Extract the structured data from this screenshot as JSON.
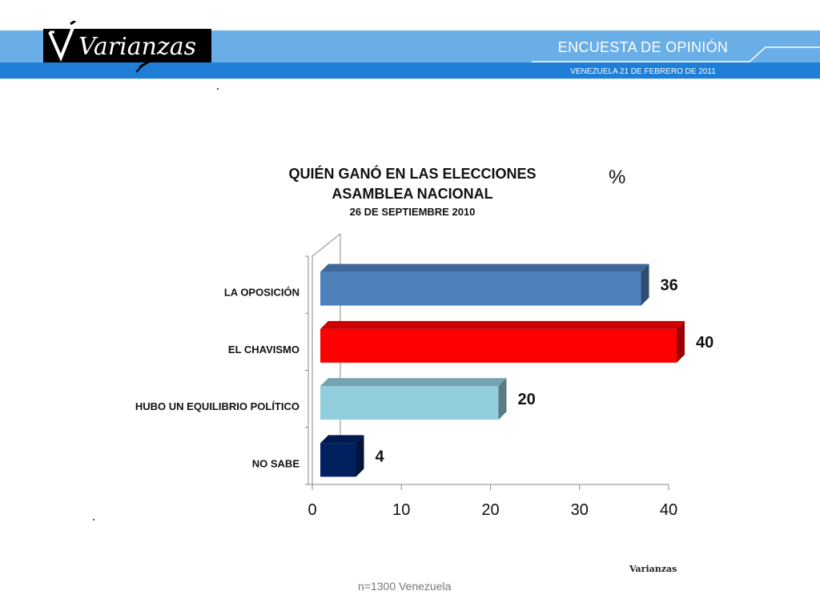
{
  "header": {
    "title": "ENCUESTA DE OPINIÓN",
    "subtitle": "VENEZUELA  21 DE  FEBRERO DE 2011",
    "logo_text": "Varianzas",
    "logo_icon": "varianzas-logo-icon"
  },
  "chart_data": {
    "type": "bar",
    "orientation": "horizontal",
    "style": "3d",
    "title": "QUIÉN GANÓ EN LAS ELECCIONES",
    "title_line2": "ASAMBLEA NACIONAL",
    "subtitle": "26 DE SEPTIEMBRE 2010",
    "unit_label": "%",
    "categories": [
      "LA OPOSICIÓN",
      "EL CHAVISMO",
      "HUBO UN EQUILIBRIO POLÍTICO",
      "NO SABE"
    ],
    "values": [
      36,
      40,
      20,
      4
    ],
    "colors": [
      "#4f81bd",
      "#ff0000",
      "#92cddc",
      "#002060"
    ],
    "xlim": [
      0,
      40
    ],
    "x_ticks": [
      0,
      10,
      20,
      30,
      40
    ],
    "grid": false,
    "legend": "none"
  },
  "footer": {
    "source": "Varianzas",
    "note": "n=1300  Venezuela"
  }
}
